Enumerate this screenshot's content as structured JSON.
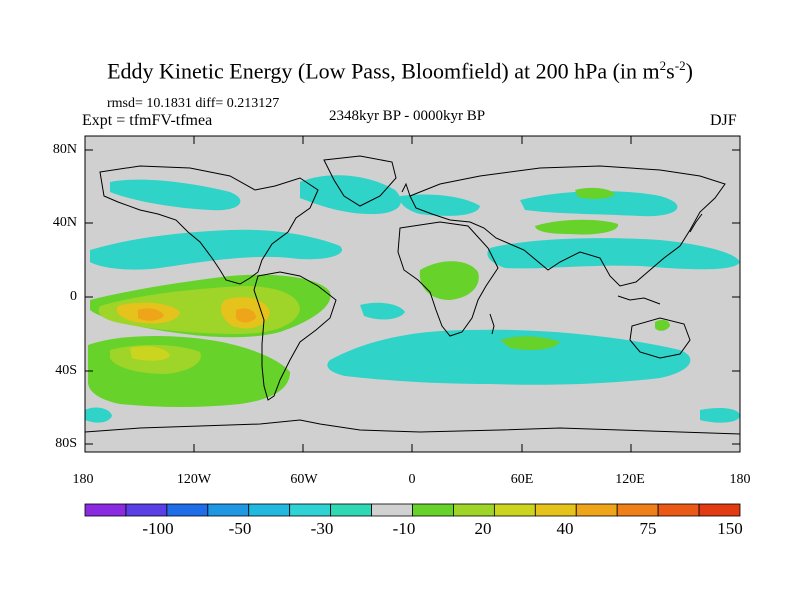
{
  "title": {
    "main": "Eddy Kinetic Energy (Low Pass, Bloomfield) at 200 hPa (in m",
    "sup1": "2",
    "mid": "s",
    "sup2": "-2",
    "end": ")"
  },
  "stats_line": "rmsd= 10.1831  diff= 0.213127",
  "experiment": "Expt = tfmFV-tfmea",
  "period": "2348kyr BP - 0000kyr BP",
  "season": "DJF",
  "lat_labels": [
    "80N",
    "40N",
    "0",
    "40S",
    "80S"
  ],
  "lon_labels": [
    "180",
    "120W",
    "60W",
    "0",
    "60E",
    "120E",
    "180"
  ],
  "colorbar": {
    "labels": [
      "-100",
      "-50",
      "-30",
      "-10",
      "20",
      "40",
      "75",
      "150"
    ],
    "colors": [
      "#8a2be2",
      "#5a3ee6",
      "#1f6ee8",
      "#1f97e3",
      "#22b9e0",
      "#2fd3d6",
      "#30d9b4",
      "#d1d1d1",
      "#66d22a",
      "#9fd428",
      "#cbd51f",
      "#e5c31c",
      "#eea51a",
      "#ef7f18",
      "#ea5a16",
      "#e23a12"
    ]
  },
  "colors": {
    "land_bg": "#d0d0d0",
    "cyan": "#2fd3c8",
    "green": "#66d22a",
    "yellowgreen": "#9fd428",
    "yellow": "#e5c31c",
    "orange": "#ef7f18"
  }
}
